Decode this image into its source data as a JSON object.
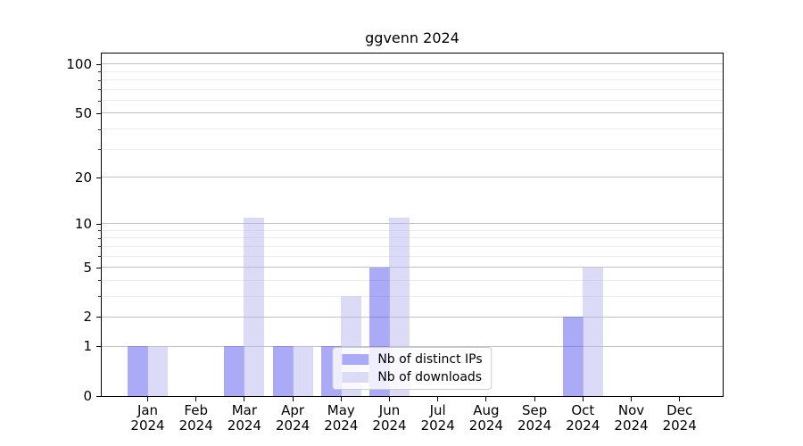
{
  "title": "ggvenn 2024",
  "chart_data": {
    "type": "bar",
    "title": "ggvenn 2024",
    "categories": [
      "Jan",
      "Feb",
      "Mar",
      "Apr",
      "May",
      "Jun",
      "Jul",
      "Aug",
      "Sep",
      "Oct",
      "Nov",
      "Dec"
    ],
    "year_label": "2024",
    "series": [
      {
        "name": "Nb of distinct IPs",
        "color": "#5555f0",
        "rendered_color": "#aaaaf8",
        "opacity": 0.5,
        "values": [
          1,
          0,
          1,
          1,
          1,
          5,
          0,
          0,
          0,
          2,
          0,
          0
        ]
      },
      {
        "name": "Nb of downloads",
        "color": "#b7b7f0",
        "rendered_color": "#dbdbf8",
        "opacity": 0.5,
        "values": [
          1,
          0,
          11,
          1,
          3,
          11,
          0,
          0,
          0,
          5,
          0,
          0
        ]
      }
    ],
    "y_scale": "log10(1+x)",
    "y_major_ticks": [
      0,
      1,
      2,
      5,
      10,
      20,
      50,
      100
    ],
    "y_minor_gridlines": [
      3,
      4,
      6,
      7,
      8,
      9,
      30,
      40,
      60,
      70,
      80,
      90
    ],
    "ylim": [
      0,
      116
    ],
    "grid": "horizontal",
    "legend_position": "lower center inside plot",
    "major_grid_color": "#c2c2c2",
    "minor_grid_color": "#ebebeb"
  }
}
